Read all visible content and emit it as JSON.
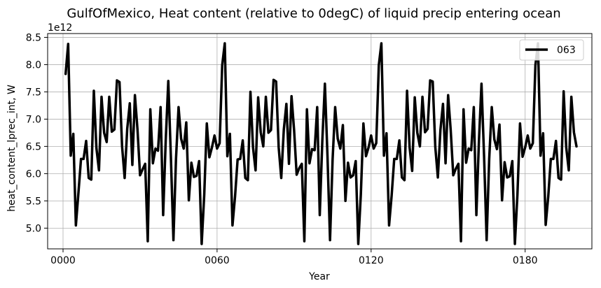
{
  "chart_data": {
    "type": "line",
    "title": "GulfOfMexico, Heat content (relative to 0degC) of liquid precip entering ocean",
    "xlabel": "Year",
    "ylabel": "heat_content_lprec_int, W",
    "y_offset_label": "1e12",
    "xlim": [
      -6,
      206
    ],
    "ylim": [
      4.62,
      8.57
    ],
    "x_ticks": [
      0,
      60,
      120,
      180
    ],
    "x_tick_labels": [
      "0000",
      "0060",
      "0120",
      "0180"
    ],
    "y_ticks": [
      5.0,
      5.5,
      6.0,
      6.5,
      7.0,
      7.5,
      8.0,
      8.5
    ],
    "y_tick_labels": [
      "5.0",
      "5.5",
      "6.0",
      "6.5",
      "7.0",
      "7.5",
      "8.0",
      "8.5"
    ],
    "grid": true,
    "legend_position": "top-right",
    "series": [
      {
        "name": "063",
        "color": "#000000",
        "x_start": 1,
        "x_step": 1,
        "values": [
          7.83,
          8.38,
          6.33,
          6.73,
          5.05,
          5.65,
          6.27,
          6.27,
          6.6,
          5.92,
          5.89,
          7.52,
          6.47,
          6.06,
          7.41,
          6.75,
          6.58,
          7.41,
          6.77,
          6.81,
          7.71,
          7.68,
          6.5,
          5.92,
          6.82,
          7.29,
          6.16,
          7.44,
          6.81,
          5.97,
          6.08,
          6.18,
          4.76,
          7.18,
          6.19,
          6.46,
          6.42,
          7.22,
          5.24,
          6.61,
          7.7,
          6.32,
          4.78,
          6.27,
          7.22,
          6.64,
          6.46,
          6.94,
          5.51,
          6.2,
          5.94,
          5.96,
          6.23,
          4.71,
          5.61,
          6.92,
          6.3,
          6.48,
          6.7,
          6.46,
          6.56,
          7.99,
          8.39,
          6.32,
          6.73,
          5.05,
          5.58,
          6.26,
          6.27,
          6.61,
          5.92,
          5.88,
          7.5,
          6.48,
          6.06,
          7.4,
          6.76,
          6.5,
          7.41,
          6.75,
          6.8,
          7.72,
          7.69,
          6.48,
          5.92,
          6.81,
          7.28,
          6.18,
          7.42,
          6.8,
          5.98,
          6.1,
          6.18,
          4.76,
          7.18,
          6.19,
          6.45,
          6.43,
          7.22,
          5.24,
          6.61,
          7.65,
          6.33,
          4.78,
          6.26,
          7.22,
          6.64,
          6.46,
          6.89,
          5.5,
          6.2,
          5.93,
          5.97,
          6.23,
          4.71,
          5.62,
          6.92,
          6.32,
          6.48,
          6.7,
          6.46,
          6.56,
          7.99,
          8.39,
          6.33,
          6.74,
          5.05,
          5.6,
          6.27,
          6.27,
          6.61,
          5.93,
          5.88,
          7.52,
          6.48,
          6.05,
          7.4,
          6.75,
          6.5,
          7.41,
          6.76,
          6.82,
          7.71,
          7.69,
          6.49,
          5.93,
          6.8,
          7.28,
          6.19,
          7.44,
          6.8,
          5.97,
          6.09,
          6.18,
          4.76,
          7.18,
          6.2,
          6.46,
          6.43,
          7.22,
          5.24,
          6.6,
          7.65,
          6.32,
          4.78,
          6.27,
          7.22,
          6.63,
          6.45,
          6.9,
          5.51,
          6.21,
          5.93,
          5.95,
          6.23,
          4.71,
          5.62,
          6.92,
          6.31,
          6.48,
          6.7,
          6.46,
          6.56,
          7.99,
          8.39,
          6.33,
          6.74,
          5.06,
          5.58,
          6.27,
          6.27,
          6.6,
          5.92,
          5.89,
          7.51,
          6.48,
          6.06,
          7.41,
          6.76,
          6.5
        ]
      }
    ]
  }
}
